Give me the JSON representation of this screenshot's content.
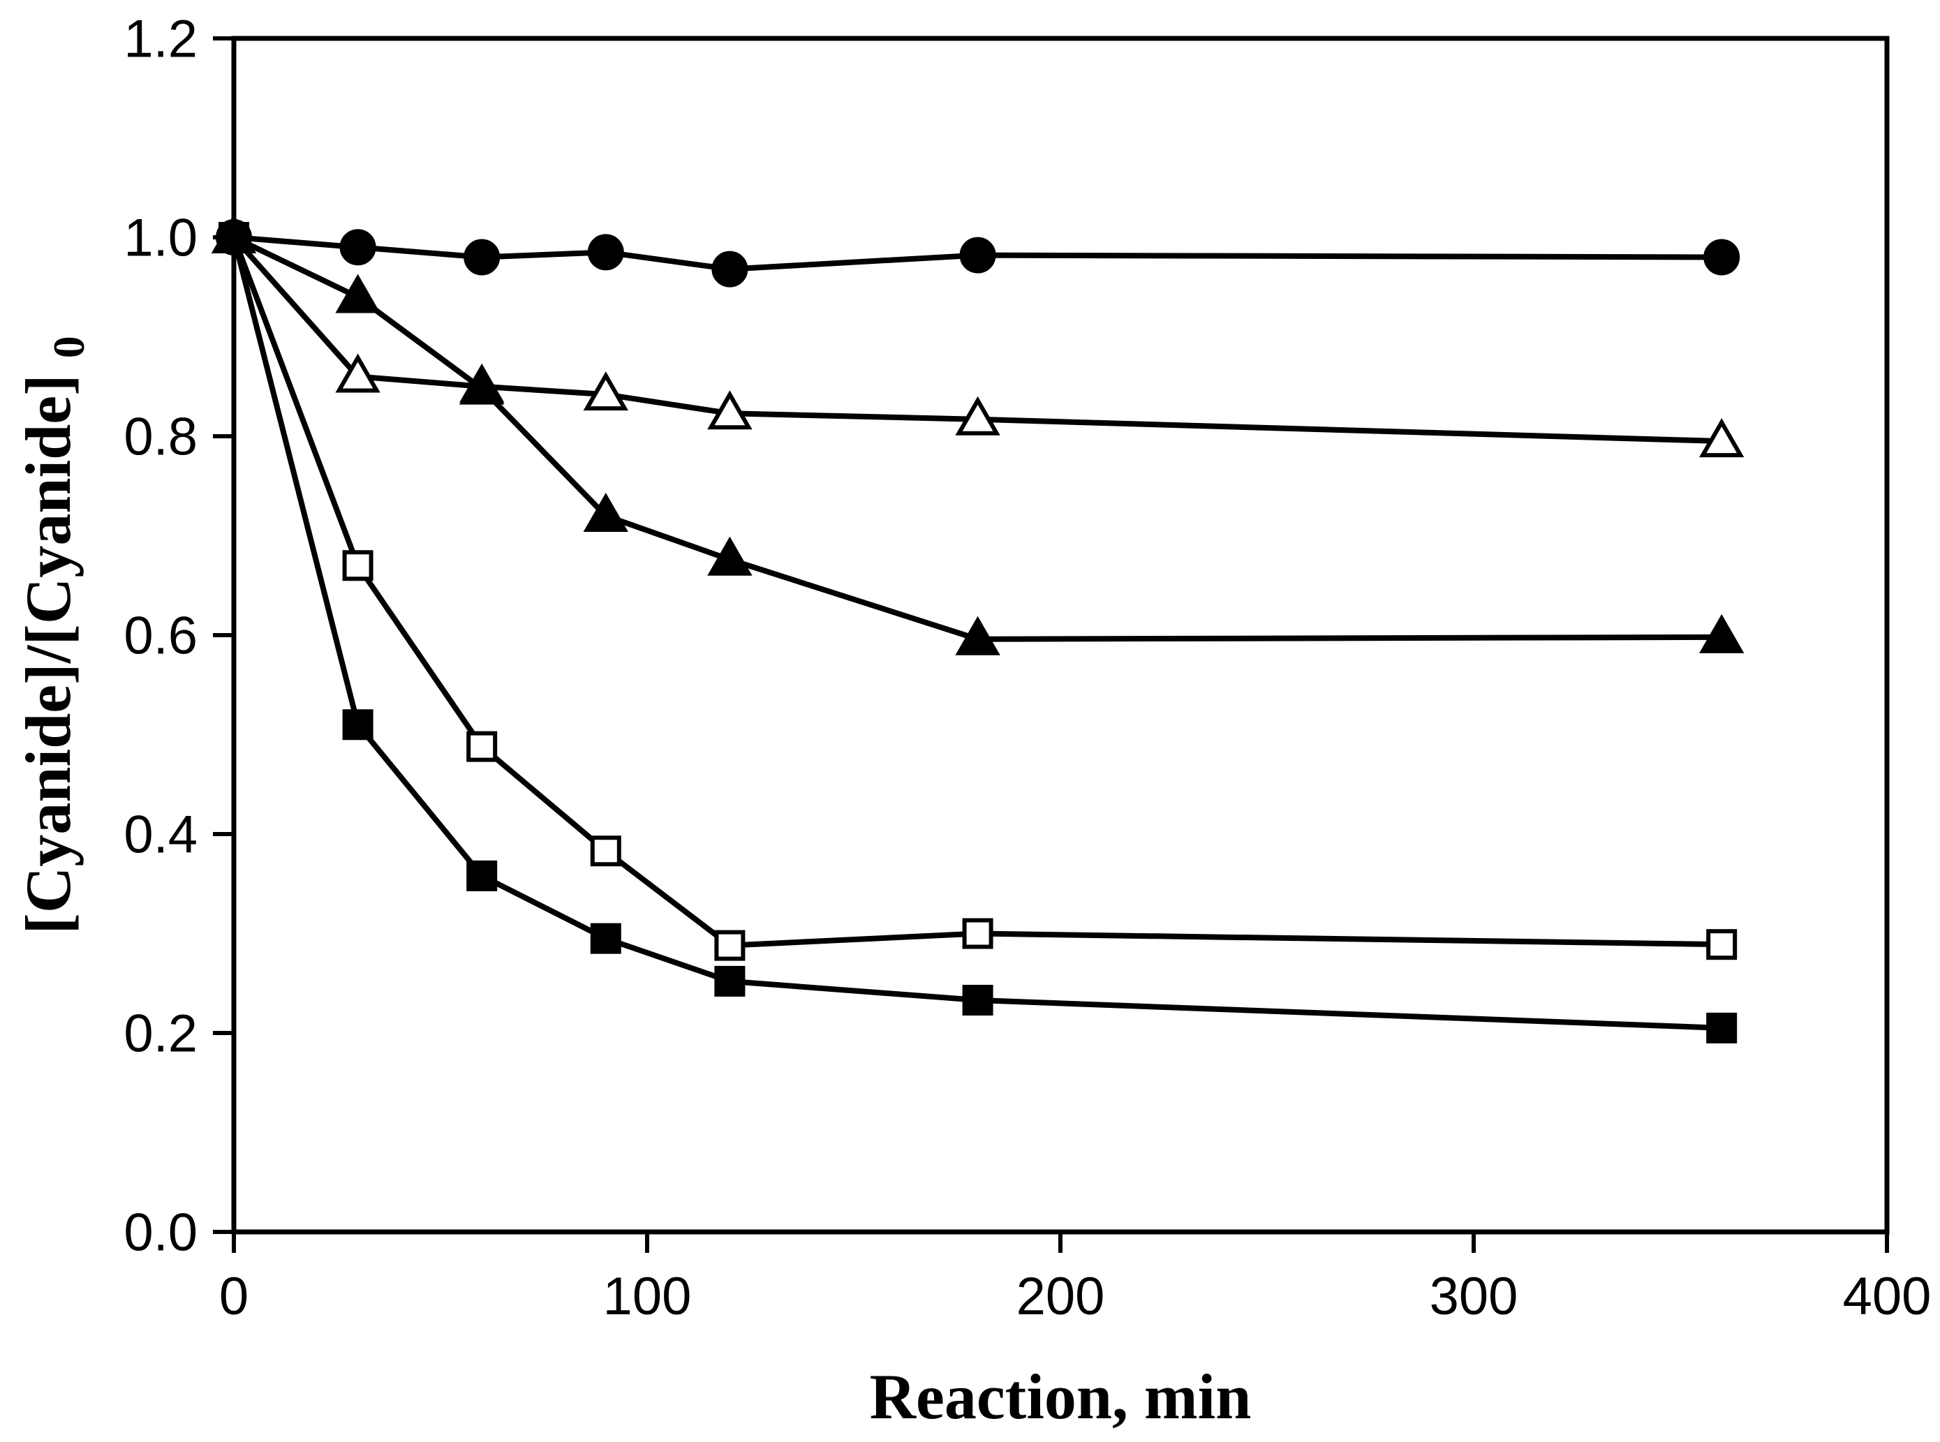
{
  "page": {
    "background_color": "#ffffff",
    "foreground_color": "#000000",
    "description": "Scientific line plot of normalized cyanide concentration versus reaction time"
  },
  "chart_data": {
    "type": "line",
    "title": "",
    "xlabel": "Reaction, min",
    "ylabel": "[Cyanide]/[Cyanide]",
    "ylabel_sub": "0",
    "x": [
      0,
      30,
      60,
      90,
      120,
      180,
      360
    ],
    "xlim": [
      0,
      400
    ],
    "ylim": [
      0,
      1.2
    ],
    "xtick_values": [
      0,
      100,
      200,
      300,
      400
    ],
    "xtick_labels": [
      "0",
      "100",
      "200",
      "300",
      "400"
    ],
    "ytick_values": [
      0,
      0.2,
      0.4,
      0.6,
      0.8,
      1.0,
      1.2
    ],
    "ytick_labels": [
      "0.0",
      "0.2",
      "0.4",
      "0.6",
      "0.8",
      "1.0",
      "1.2"
    ],
    "grid": false,
    "legend": "none",
    "frame": "box",
    "line_color": "#000000",
    "series": [
      {
        "name": "filled-circle",
        "marker": "circle",
        "fill": "filled",
        "values": [
          1.0,
          0.99,
          0.98,
          0.985,
          0.968,
          0.982,
          0.98
        ]
      },
      {
        "name": "open-triangle",
        "marker": "triangle",
        "fill": "open",
        "values": [
          1.0,
          0.86,
          0.85,
          0.842,
          0.823,
          0.817,
          0.795
        ]
      },
      {
        "name": "filled-triangle",
        "marker": "triangle",
        "fill": "filled",
        "values": [
          1.0,
          0.94,
          0.848,
          0.72,
          0.676,
          0.596,
          0.598
        ]
      },
      {
        "name": "open-square",
        "marker": "square",
        "fill": "open",
        "values": [
          1.0,
          0.67,
          0.488,
          0.383,
          0.288,
          0.3,
          0.289
        ]
      },
      {
        "name": "filled-square",
        "marker": "square",
        "fill": "filled",
        "values": [
          1.0,
          0.51,
          0.358,
          0.295,
          0.252,
          0.233,
          0.205
        ]
      }
    ]
  }
}
